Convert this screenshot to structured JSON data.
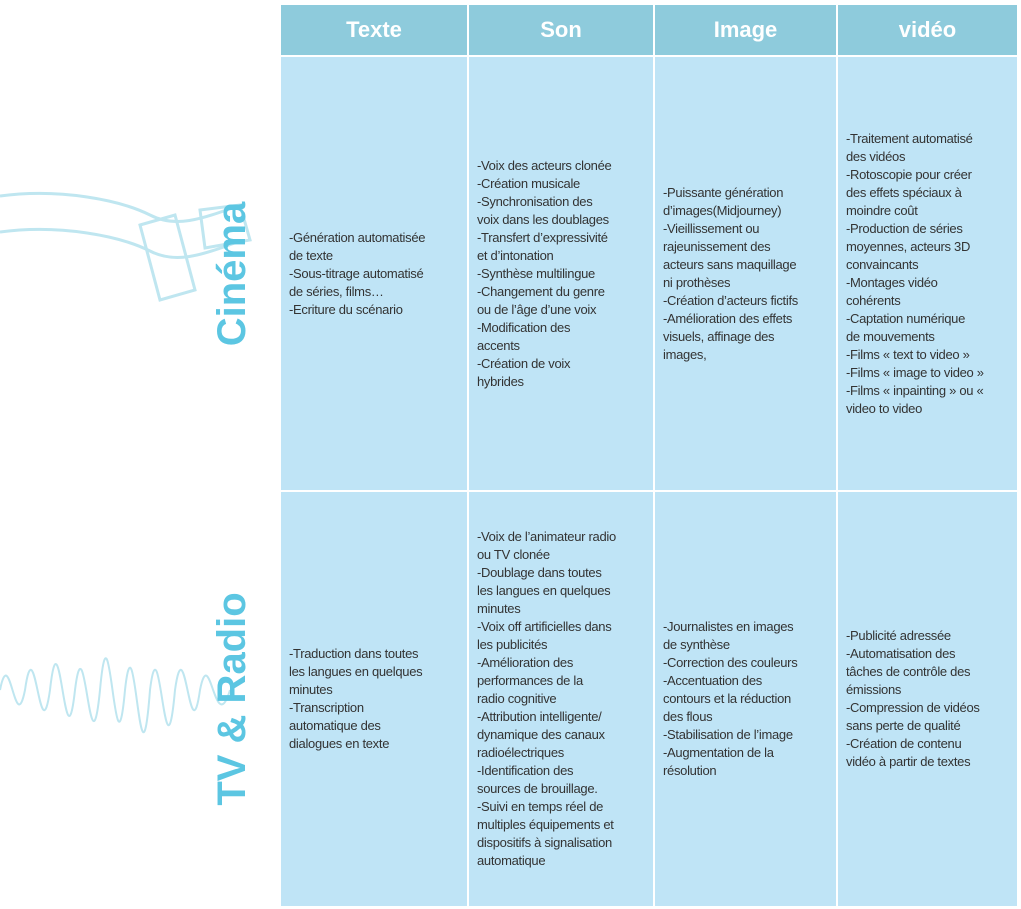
{
  "table": {
    "columns": [
      "Texte",
      "Son",
      "Image",
      "vidéo"
    ],
    "rows": [
      {
        "label": "Cinéma",
        "cells": [
          [
            "-Génération automatisée",
            "de texte",
            "-Sous-titrage automatisé",
            "de séries, films…",
            "-Ecriture du scénario"
          ],
          [
            "-Voix des acteurs clonée",
            "-Création musicale",
            "-Synchronisation des",
            "voix dans les doublages",
            "-Transfert d’expressivité",
            "et d’intonation",
            "-Synthèse multilingue",
            "-Changement du genre",
            "ou de l’âge d’une voix",
            "-Modification des",
            "accents",
            "-Création de voix",
            "hybrides"
          ],
          [
            "-Puissante génération",
            "d’images(Midjourney)",
            "-Vieillissement ou",
            "rajeunissement des",
            "acteurs sans maquillage",
            "ni prothèses",
            "-Création d’acteurs fictifs",
            "-Amélioration des effets",
            "visuels, affinage des",
            "images,"
          ],
          [
            "-Traitement automatisé",
            "des vidéos",
            "-Rotoscopie pour créer",
            "des effets spéciaux à",
            "moindre coût",
            "-Production de séries",
            "moyennes, acteurs 3D",
            "convaincants",
            "-Montages vidéo",
            "cohérents",
            "-Captation numérique",
            "de mouvements",
            "-Films « text to video »",
            "-Films « image to video »",
            "-Films « inpainting » ou «",
            "video to video"
          ]
        ]
      },
      {
        "label": "TV & Radio",
        "cells": [
          [
            "-Traduction dans toutes",
            "les langues en quelques",
            "minutes",
            "-Transcription",
            "automatique des",
            "dialogues en texte"
          ],
          [
            "-Voix de l’animateur radio",
            "ou TV clonée",
            "-Doublage dans toutes",
            "les langues en quelques",
            "minutes",
            "-Voix off artificielles dans",
            "les publicités",
            "-Amélioration des",
            "performances de la",
            "radio cognitive",
            "-Attribution intelligente/",
            "dynamique des canaux",
            "radioélectriques",
            "-Identification des",
            "sources de brouillage.",
            "-Suivi en temps réel de",
            "multiples équipements et",
            "dispositifs à signalisation",
            "automatique"
          ],
          [
            "-Journalistes en images",
            "de synthèse",
            "-Correction des couleurs",
            "-Accentuation des",
            "contours et la réduction",
            "des flous",
            "-Stabilisation de l’image",
            "-Augmentation de la",
            "résolution"
          ],
          [
            "-Publicité adressée",
            "-Automatisation des",
            "tâches de contrôle des",
            "émissions",
            "-Compression de vidéos",
            "sans perte de qualité",
            "-Création de contenu",
            "vidéo à partir de textes"
          ]
        ]
      }
    ]
  }
}
